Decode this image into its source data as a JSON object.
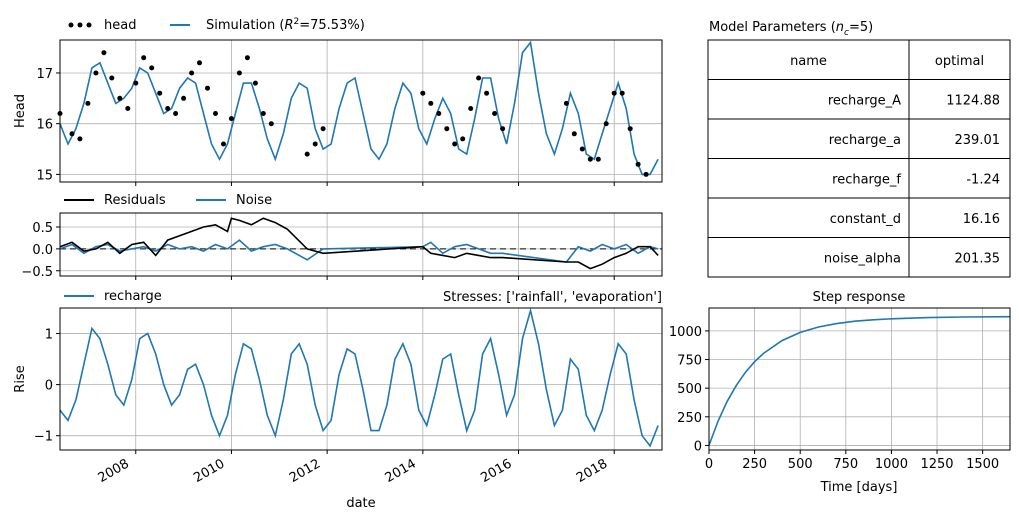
{
  "chart_data": [
    {
      "type": "line",
      "id": "head",
      "ylabel": "Head",
      "xlabel": "",
      "xlim": [
        "2006-06-01",
        "2018-12-31"
      ],
      "ylim": [
        14.85,
        17.65
      ],
      "yticks": [
        "15",
        "16",
        "17"
      ],
      "grid": true,
      "legend": "above-left",
      "series": [
        {
          "name": "head",
          "style": "dots",
          "color": "#000000",
          "x": [
            "2006-06",
            "2006-09",
            "2006-11",
            "2007-01",
            "2007-03",
            "2007-05",
            "2007-07",
            "2007-09",
            "2007-11",
            "2008-01",
            "2008-03",
            "2008-05",
            "2008-07",
            "2008-09",
            "2008-11",
            "2009-01",
            "2009-03",
            "2009-05",
            "2009-07",
            "2009-09",
            "2009-11",
            "2010-01",
            "2010-03",
            "2010-05",
            "2010-07",
            "2010-09",
            "2010-11",
            "2011-08",
            "2011-10",
            "2011-12",
            "2014-01",
            "2014-03",
            "2014-05",
            "2014-07",
            "2014-09",
            "2014-11",
            "2015-01",
            "2015-03",
            "2015-05",
            "2015-07",
            "2015-09",
            "2017-01",
            "2017-03",
            "2017-05",
            "2017-07",
            "2017-09",
            "2017-11",
            "2018-01",
            "2018-03",
            "2018-05",
            "2018-07",
            "2018-09"
          ],
          "y": [
            16.2,
            15.8,
            15.7,
            16.4,
            17.0,
            17.4,
            16.9,
            16.5,
            16.3,
            16.8,
            17.3,
            17.1,
            16.6,
            16.3,
            16.2,
            16.5,
            17.0,
            17.2,
            16.7,
            16.2,
            15.6,
            16.1,
            17.0,
            17.3,
            16.8,
            16.2,
            16.0,
            15.4,
            15.6,
            15.9,
            16.6,
            16.4,
            16.2,
            15.9,
            15.6,
            15.7,
            16.3,
            16.9,
            16.6,
            16.2,
            15.9,
            16.4,
            15.8,
            15.5,
            15.3,
            15.3,
            16.0,
            16.6,
            16.6,
            15.9,
            15.2,
            15.0
          ]
        },
        {
          "name": "Simulation ($R^2$=75.53%)",
          "color": "#1f77b4",
          "x": [
            "2006-06",
            "2006-08",
            "2006-10",
            "2006-12",
            "2007-02",
            "2007-04",
            "2007-06",
            "2007-08",
            "2007-10",
            "2007-12",
            "2008-02",
            "2008-04",
            "2008-06",
            "2008-08",
            "2008-10",
            "2008-12",
            "2009-02",
            "2009-04",
            "2009-06",
            "2009-08",
            "2009-10",
            "2009-12",
            "2010-02",
            "2010-04",
            "2010-06",
            "2010-08",
            "2010-10",
            "2010-12",
            "2011-02",
            "2011-04",
            "2011-06",
            "2011-08",
            "2011-10",
            "2011-12",
            "2012-02",
            "2012-04",
            "2012-06",
            "2012-08",
            "2012-10",
            "2012-12",
            "2013-02",
            "2013-04",
            "2013-06",
            "2013-08",
            "2013-10",
            "2013-12",
            "2014-02",
            "2014-04",
            "2014-06",
            "2014-08",
            "2014-10",
            "2014-12",
            "2015-02",
            "2015-04",
            "2015-06",
            "2015-08",
            "2015-10",
            "2015-12",
            "2016-02",
            "2016-04",
            "2016-06",
            "2016-08",
            "2016-10",
            "2016-12",
            "2017-02",
            "2017-04",
            "2017-06",
            "2017-08",
            "2017-10",
            "2017-12",
            "2018-02",
            "2018-04",
            "2018-06",
            "2018-08",
            "2018-10",
            "2018-12"
          ],
          "y": [
            16.0,
            15.6,
            15.9,
            16.4,
            17.1,
            17.2,
            16.8,
            16.4,
            16.5,
            16.7,
            17.1,
            17.0,
            16.6,
            16.2,
            16.3,
            16.7,
            16.9,
            16.8,
            16.2,
            15.6,
            15.3,
            15.6,
            16.2,
            16.8,
            16.8,
            16.3,
            15.7,
            15.3,
            15.8,
            16.5,
            16.8,
            16.7,
            15.9,
            15.5,
            15.6,
            16.3,
            16.8,
            16.9,
            16.2,
            15.5,
            15.3,
            15.6,
            16.3,
            16.8,
            16.6,
            15.9,
            15.6,
            16.1,
            16.5,
            16.2,
            15.5,
            15.4,
            16.1,
            16.9,
            16.9,
            16.1,
            15.6,
            16.4,
            17.4,
            17.6,
            16.6,
            15.8,
            15.4,
            15.9,
            16.6,
            16.2,
            15.4,
            15.3,
            15.8,
            16.3,
            16.8,
            16.3,
            15.4,
            15.0,
            15.0,
            15.3
          ]
        }
      ]
    },
    {
      "type": "line",
      "id": "residuals",
      "ylabel": "",
      "xlim": [
        "2006-06-01",
        "2018-12-31"
      ],
      "ylim": [
        -0.62,
        0.82
      ],
      "yticks": [
        "-0.5",
        "0.0",
        "0.5"
      ],
      "grid": true,
      "zero_line": "dashed",
      "legend": "above-left",
      "series": [
        {
          "name": "Residuals",
          "color": "#000000",
          "x": [
            "2006-06",
            "2006-09",
            "2006-12",
            "2007-03",
            "2007-06",
            "2007-09",
            "2007-12",
            "2008-03",
            "2008-06",
            "2008-09",
            "2008-12",
            "2009-03",
            "2009-06",
            "2009-09",
            "2009-12",
            "2010-01",
            "2010-03",
            "2010-06",
            "2010-09",
            "2010-12",
            "2011-03",
            "2011-08",
            "2011-12",
            "2014-01",
            "2014-03",
            "2014-06",
            "2014-09",
            "2014-12",
            "2015-03",
            "2015-06",
            "2015-09",
            "2017-01",
            "2017-04",
            "2017-07",
            "2017-10",
            "2018-01",
            "2018-04",
            "2018-07",
            "2018-10",
            "2018-12"
          ],
          "y": [
            0.05,
            0.15,
            -0.05,
            0.0,
            0.15,
            -0.1,
            0.1,
            0.15,
            -0.15,
            0.2,
            0.3,
            0.4,
            0.5,
            0.55,
            0.4,
            0.7,
            0.65,
            0.55,
            0.7,
            0.6,
            0.45,
            0.0,
            -0.1,
            0.05,
            -0.1,
            -0.15,
            -0.2,
            -0.1,
            -0.15,
            -0.2,
            -0.2,
            -0.3,
            -0.3,
            -0.45,
            -0.35,
            -0.2,
            -0.1,
            0.05,
            0.05,
            -0.15
          ]
        },
        {
          "name": "Noise",
          "color": "#1f77b4",
          "x": [
            "2006-06",
            "2006-09",
            "2006-12",
            "2007-03",
            "2007-06",
            "2007-09",
            "2007-12",
            "2008-03",
            "2008-06",
            "2008-09",
            "2008-12",
            "2009-03",
            "2009-06",
            "2009-09",
            "2009-12",
            "2010-03",
            "2010-06",
            "2010-09",
            "2010-12",
            "2011-03",
            "2011-08",
            "2011-12",
            "2014-01",
            "2014-03",
            "2014-06",
            "2014-09",
            "2014-12",
            "2015-03",
            "2015-06",
            "2015-09",
            "2017-01",
            "2017-04",
            "2017-07",
            "2017-10",
            "2018-01",
            "2018-04",
            "2018-07",
            "2018-10",
            "2018-12"
          ],
          "y": [
            0.0,
            0.1,
            -0.1,
            0.05,
            0.1,
            -0.05,
            0.0,
            0.05,
            -0.05,
            0.1,
            0.0,
            0.05,
            -0.05,
            0.1,
            0.0,
            0.2,
            -0.05,
            0.05,
            0.1,
            0.0,
            -0.25,
            0.0,
            0.05,
            0.15,
            -0.1,
            0.05,
            0.1,
            0.0,
            -0.1,
            -0.1,
            -0.3,
            0.05,
            -0.05,
            0.1,
            0.0,
            0.1,
            -0.1,
            0.05,
            0.0
          ]
        }
      ]
    },
    {
      "type": "line",
      "id": "recharge",
      "ylabel": "Rise",
      "xlabel": "date",
      "title_right": "Stresses: ['rainfall', 'evaporation']",
      "xlim": [
        "2006-06-01",
        "2018-12-31"
      ],
      "ylim": [
        -1.28,
        1.5
      ],
      "yticks": [
        "-1",
        "0",
        "1"
      ],
      "xticks": [
        "2008",
        "2010",
        "2012",
        "2014",
        "2016",
        "2018"
      ],
      "grid": true,
      "legend": "above-left",
      "series": [
        {
          "name": "recharge",
          "color": "#1f77b4",
          "x": [
            "2006-06",
            "2006-08",
            "2006-10",
            "2006-12",
            "2007-02",
            "2007-04",
            "2007-06",
            "2007-08",
            "2007-10",
            "2007-12",
            "2008-02",
            "2008-04",
            "2008-06",
            "2008-08",
            "2008-10",
            "2008-12",
            "2009-02",
            "2009-04",
            "2009-06",
            "2009-08",
            "2009-10",
            "2009-12",
            "2010-02",
            "2010-04",
            "2010-06",
            "2010-08",
            "2010-10",
            "2010-12",
            "2011-02",
            "2011-04",
            "2011-06",
            "2011-08",
            "2011-10",
            "2011-12",
            "2012-02",
            "2012-04",
            "2012-06",
            "2012-08",
            "2012-10",
            "2012-12",
            "2013-02",
            "2013-04",
            "2013-06",
            "2013-08",
            "2013-10",
            "2013-12",
            "2014-02",
            "2014-04",
            "2014-06",
            "2014-08",
            "2014-10",
            "2014-12",
            "2015-02",
            "2015-04",
            "2015-06",
            "2015-08",
            "2015-10",
            "2015-12",
            "2016-02",
            "2016-04",
            "2016-06",
            "2016-08",
            "2016-10",
            "2016-12",
            "2017-02",
            "2017-04",
            "2017-06",
            "2017-08",
            "2017-10",
            "2017-12",
            "2018-02",
            "2018-04",
            "2018-06",
            "2018-08",
            "2018-10",
            "2018-12"
          ],
          "y": [
            -0.5,
            -0.7,
            -0.3,
            0.4,
            1.1,
            0.9,
            0.4,
            -0.2,
            -0.4,
            0.1,
            0.9,
            1.0,
            0.6,
            0.0,
            -0.4,
            -0.2,
            0.3,
            0.4,
            0.0,
            -0.6,
            -1.0,
            -0.6,
            0.2,
            0.8,
            0.7,
            0.1,
            -0.6,
            -1.0,
            -0.3,
            0.6,
            0.8,
            0.4,
            -0.4,
            -0.9,
            -0.7,
            0.2,
            0.7,
            0.6,
            -0.1,
            -0.9,
            -0.9,
            -0.4,
            0.5,
            0.8,
            0.4,
            -0.5,
            -0.8,
            -0.2,
            0.5,
            0.6,
            -0.2,
            -0.9,
            -0.5,
            0.6,
            0.9,
            0.2,
            -0.6,
            -0.2,
            0.9,
            1.45,
            0.8,
            -0.1,
            -0.8,
            -0.5,
            0.5,
            0.3,
            -0.6,
            -0.9,
            -0.5,
            0.2,
            0.8,
            0.6,
            -0.3,
            -1.0,
            -1.2,
            -0.8
          ]
        }
      ]
    },
    {
      "type": "line",
      "id": "step_response",
      "title": "Step response",
      "xlabel": "Time [days]",
      "ylabel": "",
      "xlim": [
        0,
        1650
      ],
      "ylim": [
        -40,
        1200
      ],
      "xticks": [
        0,
        250,
        500,
        750,
        1000,
        1250,
        1500
      ],
      "yticks": [
        0,
        250,
        500,
        750,
        1000
      ],
      "grid": true,
      "series": [
        {
          "name": "",
          "color": "#1f77b4",
          "x": [
            0,
            50,
            100,
            150,
            200,
            250,
            300,
            400,
            500,
            600,
            700,
            800,
            900,
            1000,
            1200,
            1400,
            1650
          ],
          "y": [
            0,
            213,
            385,
            525,
            639,
            731,
            805,
            915,
            987,
            1034,
            1064,
            1085,
            1097,
            1106,
            1116,
            1121,
            1124
          ]
        }
      ]
    },
    {
      "type": "table",
      "id": "parameters",
      "title": "Model Parameters ($n_c$=5)",
      "columns": [
        "name",
        "optimal"
      ],
      "rows": [
        [
          "recharge_A",
          "1124.88"
        ],
        [
          "recharge_a",
          "239.01"
        ],
        [
          "recharge_f",
          "-1.24"
        ],
        [
          "constant_d",
          "16.16"
        ],
        [
          "noise_alpha",
          "201.35"
        ]
      ]
    }
  ]
}
